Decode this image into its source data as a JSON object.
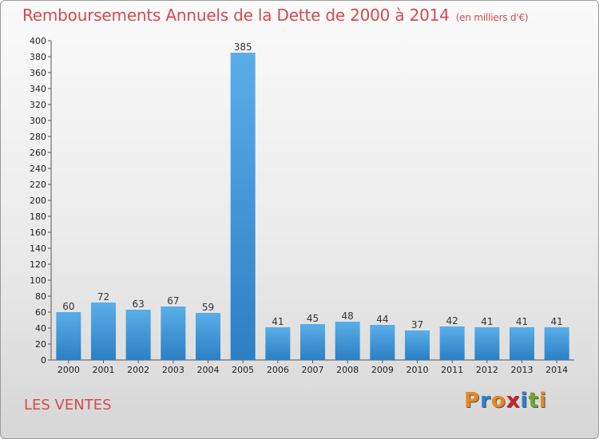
{
  "title": "Remboursements Annuels de la Dette de 2000 à 2014",
  "unit": "(en milliers d'€)",
  "place": "LES VENTES",
  "logo": {
    "letters": [
      "P",
      "r",
      "o",
      "x",
      "i",
      "t",
      "i"
    ],
    "colors": [
      "#e58a1f",
      "#2f7fd2",
      "#e58a1f",
      "#c9242b",
      "#2f7fd2",
      "#6aa82f",
      "#e58a1f"
    ]
  },
  "chart_data": {
    "type": "bar",
    "categories": [
      "2000",
      "2001",
      "2002",
      "2003",
      "2004",
      "2005",
      "2006",
      "2007",
      "2008",
      "2009",
      "2010",
      "2011",
      "2012",
      "2013",
      "2014"
    ],
    "values": [
      60,
      72,
      63,
      67,
      59,
      385,
      41,
      45,
      48,
      44,
      37,
      42,
      41,
      41,
      41
    ],
    "ylim": [
      0,
      400
    ],
    "ytick_step": 20,
    "grid": false,
    "bar_color": "#3f97d9"
  }
}
